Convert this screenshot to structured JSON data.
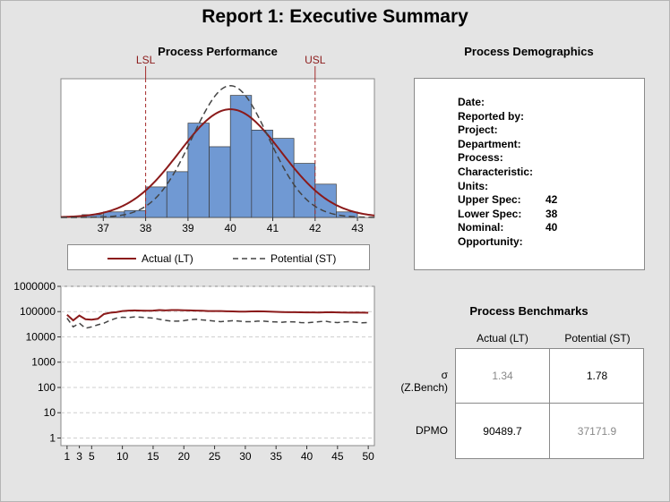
{
  "title": "Report 1: Executive Summary",
  "performance": {
    "title": "Process Performance",
    "lsl_label": "LSL",
    "usl_label": "USL",
    "legend": {
      "actual": "Actual (LT)",
      "potential": "Potential (ST)"
    }
  },
  "demographics": {
    "title": "Process Demographics",
    "rows": [
      {
        "label": "Date:",
        "value": ""
      },
      {
        "label": "Reported by:",
        "value": ""
      },
      {
        "label": "Project:",
        "value": ""
      },
      {
        "label": "Department:",
        "value": ""
      },
      {
        "label": "Process:",
        "value": ""
      },
      {
        "label": "Characteristic:",
        "value": ""
      },
      {
        "label": "Units:",
        "value": ""
      },
      {
        "label": "Upper Spec:",
        "value": "42"
      },
      {
        "label": "Lower Spec:",
        "value": "38"
      },
      {
        "label": "Nominal:",
        "value": "40"
      },
      {
        "label": "Opportunity:",
        "value": ""
      }
    ]
  },
  "benchmarks": {
    "title": "Process Benchmarks",
    "col_actual": "Actual (LT)",
    "col_potential": "Potential (ST)",
    "row_sigma_symbol": "σ",
    "row_sigma_sub": "(Z.Bench)",
    "row_dpmo": "DPMO",
    "sigma_actual": "1.34",
    "sigma_potential": "1.78",
    "dpmo_actual": "90489.7",
    "dpmo_potential": "37171.9"
  },
  "chart_data": [
    {
      "type": "bar",
      "xlim": [
        36,
        43.4
      ],
      "ylim": [
        0,
        1
      ],
      "bin_width": 0.5,
      "bins": [
        {
          "x0": 36.5,
          "v": 0.02
        },
        {
          "x0": 37.0,
          "v": 0.04
        },
        {
          "x0": 37.5,
          "v": 0.05
        },
        {
          "x0": 38.0,
          "v": 0.22
        },
        {
          "x0": 38.5,
          "v": 0.33
        },
        {
          "x0": 39.0,
          "v": 0.68
        },
        {
          "x0": 39.5,
          "v": 0.51
        },
        {
          "x0": 40.0,
          "v": 0.88
        },
        {
          "x0": 40.5,
          "v": 0.63
        },
        {
          "x0": 41.0,
          "v": 0.57
        },
        {
          "x0": 41.5,
          "v": 0.39
        },
        {
          "x0": 42.0,
          "v": 0.24
        },
        {
          "x0": 42.5,
          "v": 0.04
        }
      ],
      "xticks": [
        37,
        38,
        39,
        40,
        41,
        42,
        43
      ],
      "lsl": 38,
      "usl": 42,
      "curves": [
        {
          "name": "Actual (LT)",
          "mean": 40.0,
          "sd": 1.2,
          "peak": 0.78,
          "color": "#8b1a1a",
          "dashed": false
        },
        {
          "name": "Potential (ST)",
          "mean": 40.0,
          "sd": 0.9,
          "peak": 0.95,
          "color": "#444444",
          "dashed": true
        }
      ]
    },
    {
      "type": "line",
      "ylog": true,
      "ylim": [
        0.5,
        1000000
      ],
      "yticks": [
        1,
        10,
        100,
        1000,
        10000,
        100000,
        1000000
      ],
      "yticklabels": [
        "1",
        "10",
        "100",
        "1000",
        "10000",
        "100000",
        "1000000"
      ],
      "xlim": [
        0,
        51
      ],
      "xticks": [
        1,
        5,
        10,
        15,
        20,
        25,
        30,
        35,
        40,
        45,
        50
      ],
      "xticklabels": [
        "1",
        "5",
        "10",
        "15",
        "20",
        "25",
        "30",
        "35",
        "40",
        "45",
        "50"
      ],
      "x_minor": [
        3
      ],
      "x_minor_labels": [
        "3"
      ],
      "series": [
        {
          "name": "Actual (LT)",
          "color": "#8b1a1a",
          "dashed": false,
          "x": [
            1,
            2,
            3,
            4,
            5,
            6,
            7,
            8,
            9,
            10,
            11,
            12,
            13,
            14,
            15,
            16,
            17,
            18,
            19,
            20,
            21,
            22,
            23,
            24,
            25,
            26,
            27,
            28,
            29,
            30,
            31,
            32,
            33,
            34,
            35,
            36,
            37,
            38,
            39,
            40,
            41,
            42,
            43,
            44,
            45,
            46,
            47,
            48,
            49,
            50
          ],
          "y": [
            75000,
            45000,
            70000,
            50000,
            48000,
            52000,
            80000,
            90000,
            95000,
            105000,
            110000,
            112000,
            110000,
            108000,
            110000,
            115000,
            112000,
            115000,
            115000,
            113000,
            112000,
            110000,
            108000,
            105000,
            105000,
            105000,
            103000,
            102000,
            100000,
            100000,
            102000,
            103000,
            102000,
            100000,
            98000,
            96000,
            95000,
            95000,
            94000,
            93000,
            93000,
            92000,
            94000,
            95000,
            93000,
            92000,
            91000,
            92000,
            91000,
            90000
          ]
        },
        {
          "name": "Potential (ST)",
          "color": "#444444",
          "dashed": true,
          "x": [
            1,
            2,
            3,
            4,
            5,
            6,
            7,
            8,
            9,
            10,
            11,
            12,
            13,
            14,
            15,
            16,
            17,
            18,
            19,
            20,
            21,
            22,
            23,
            24,
            25,
            26,
            27,
            28,
            29,
            30,
            31,
            32,
            33,
            34,
            35,
            36,
            37,
            38,
            39,
            40,
            41,
            42,
            43,
            44,
            45,
            46,
            47,
            48,
            49,
            50
          ],
          "y": [
            55000,
            25000,
            35000,
            22000,
            25000,
            30000,
            35000,
            45000,
            55000,
            60000,
            58000,
            62000,
            60000,
            58000,
            55000,
            50000,
            45000,
            42000,
            42000,
            44000,
            48000,
            50000,
            47000,
            45000,
            42000,
            40000,
            42000,
            44000,
            42000,
            40000,
            40000,
            42000,
            42000,
            40000,
            39000,
            38000,
            40000,
            39000,
            37000,
            36000,
            38000,
            40000,
            42000,
            38000,
            37000,
            39000,
            40000,
            38000,
            36000,
            37000
          ]
        }
      ]
    }
  ]
}
